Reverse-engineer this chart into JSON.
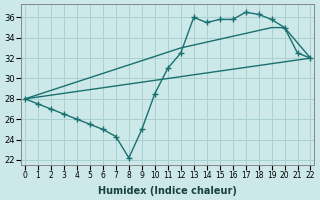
{
  "xlabel": "Humidex (Indice chaleur)",
  "bg_color": "#cce8e8",
  "grid_color": "#aad0d0",
  "line_color": "#1a7070",
  "xlim": [
    -0.3,
    22.3
  ],
  "ylim": [
    21.5,
    37.3
  ],
  "yticks": [
    22,
    24,
    26,
    28,
    30,
    32,
    34,
    36
  ],
  "xticks": [
    0,
    1,
    2,
    3,
    4,
    5,
    6,
    7,
    8,
    9,
    10,
    11,
    12,
    13,
    14,
    15,
    16,
    17,
    18,
    19,
    20,
    21,
    22
  ],
  "line1_x": [
    0,
    1,
    2,
    3,
    4,
    5,
    6,
    7,
    8,
    9,
    10,
    11,
    12,
    13,
    14,
    15,
    16,
    17,
    18,
    19,
    20,
    21,
    22
  ],
  "line1_y": [
    28,
    27.5,
    27,
    26.5,
    26,
    25.5,
    25,
    24.3,
    22.2,
    25.0,
    28.5,
    31.0,
    32.5,
    36.0,
    35.5,
    35.8,
    35.8,
    36.5,
    36.3,
    35.8,
    35.0,
    32.5,
    32.0
  ],
  "line2_x": [
    0,
    12,
    19,
    20,
    22
  ],
  "line2_y": [
    28,
    33.0,
    35.0,
    35.0,
    32.0
  ],
  "line3_x": [
    0,
    22
  ],
  "line3_y": [
    28,
    32
  ],
  "marker_size": 2.8,
  "line_width": 1.0
}
